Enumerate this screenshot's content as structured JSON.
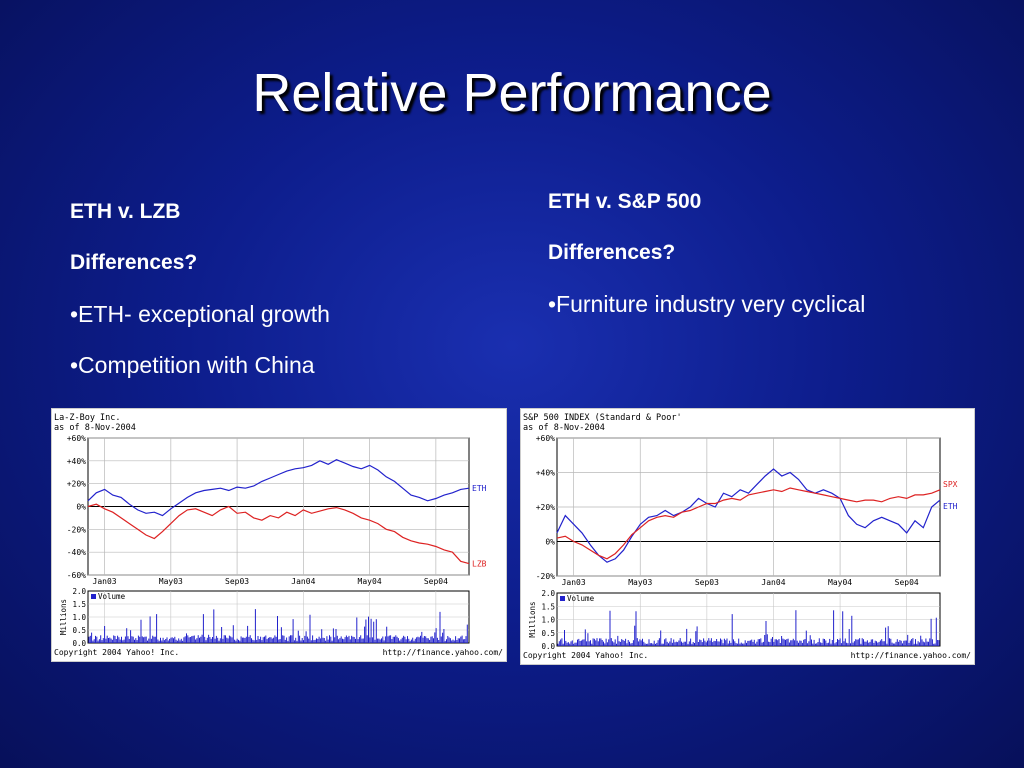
{
  "slide": {
    "title": "Relative Performance"
  },
  "left_text": {
    "heading": "ETH v. LZB",
    "question": "Differences?",
    "bullets": [
      "•ETH- exceptional growth",
      "•Competition with China"
    ]
  },
  "right_text": {
    "heading": "ETH v. S&P 500",
    "question": "Differences?",
    "bullets": [
      "•Furniture industry very cyclical"
    ]
  },
  "chart_data": [
    {
      "type": "line",
      "header": [
        "La-Z-Boy Inc.",
        "as of  8-Nov-2004"
      ],
      "ylim": [
        -60,
        60
      ],
      "yticks": [
        60,
        40,
        20,
        0,
        -20,
        -40,
        -60
      ],
      "ytick_labels": [
        "+60%",
        "+40%",
        "+20%",
        "0%",
        "-20%",
        "-40%",
        "-60%"
      ],
      "xlim": [
        0,
        23
      ],
      "xticks": [
        1,
        5,
        9,
        13,
        17,
        21
      ],
      "xtick_labels": [
        "Jan03",
        "May03",
        "Sep03",
        "Jan04",
        "May04",
        "Sep04"
      ],
      "series": [
        {
          "name": "ETH",
          "color": "#2222cc",
          "x": [
            0,
            0.5,
            1,
            1.5,
            2,
            2.5,
            3,
            3.5,
            4,
            4.5,
            5,
            5.5,
            6,
            6.5,
            7,
            7.5,
            8,
            8.5,
            9,
            9.5,
            10,
            10.5,
            11,
            11.5,
            12,
            12.5,
            13,
            13.5,
            14,
            14.5,
            15,
            15.5,
            16,
            16.5,
            17,
            17.5,
            18,
            18.5,
            19,
            19.5,
            20,
            20.5,
            21,
            21.5,
            22,
            22.5,
            23
          ],
          "y": [
            5,
            12,
            15,
            10,
            8,
            2,
            -3,
            -6,
            -5,
            -8,
            -2,
            3,
            8,
            12,
            14,
            15,
            16,
            14,
            17,
            16,
            18,
            22,
            25,
            28,
            31,
            33,
            34,
            36,
            40,
            37,
            41,
            38,
            35,
            33,
            36,
            32,
            26,
            22,
            16,
            10,
            8,
            5,
            7,
            10,
            12,
            15,
            16
          ]
        },
        {
          "name": "LZB",
          "color": "#dd2222",
          "x": [
            0,
            0.5,
            1,
            1.5,
            2,
            2.5,
            3,
            3.5,
            4,
            4.5,
            5,
            5.5,
            6,
            6.5,
            7,
            7.5,
            8,
            8.5,
            9,
            9.5,
            10,
            10.5,
            11,
            11.5,
            12,
            12.5,
            13,
            13.5,
            14,
            14.5,
            15,
            15.5,
            16,
            16.5,
            17,
            17.5,
            18,
            18.5,
            19,
            19.5,
            20,
            20.5,
            21,
            21.5,
            22,
            22.5,
            23
          ],
          "y": [
            0,
            2,
            -2,
            -5,
            -10,
            -15,
            -20,
            -25,
            -28,
            -22,
            -15,
            -8,
            -3,
            -2,
            -5,
            -8,
            -3,
            0,
            -6,
            -5,
            -10,
            -12,
            -8,
            -10,
            -5,
            -8,
            -3,
            -6,
            -4,
            -2,
            -1,
            -3,
            -6,
            -10,
            -12,
            -15,
            -20,
            -22,
            -27,
            -30,
            -32,
            -33,
            -35,
            -38,
            -40,
            -48,
            -50
          ]
        }
      ],
      "volume": {
        "label": "Volume",
        "ylim": [
          0,
          2.0
        ],
        "ytick_labels": [
          "2.0",
          "1.5",
          "1.0",
          "0.5",
          "0.0"
        ],
        "ylabel": "Millions"
      },
      "footer_left": "Copyright 2004 Yahoo! Inc.",
      "footer_right": "http://finance.yahoo.com/"
    },
    {
      "type": "line",
      "header": [
        "S&P 500 INDEX (Standard & Poor'",
        "as of  8-Nov-2004"
      ],
      "ylim": [
        -20,
        60
      ],
      "yticks": [
        60,
        40,
        20,
        0,
        -20
      ],
      "ytick_labels": [
        "+60%",
        "+40%",
        "+20%",
        "0%",
        "-20%"
      ],
      "xlim": [
        0,
        23
      ],
      "xticks": [
        1,
        5,
        9,
        13,
        17,
        21
      ],
      "xtick_labels": [
        "Jan03",
        "May03",
        "Sep03",
        "Jan04",
        "May04",
        "Sep04"
      ],
      "series": [
        {
          "name": "ETH",
          "color": "#2222cc",
          "x": [
            0,
            0.5,
            1,
            1.5,
            2,
            2.5,
            3,
            3.5,
            4,
            4.5,
            5,
            5.5,
            6,
            6.5,
            7,
            7.5,
            8,
            8.5,
            9,
            9.5,
            10,
            10.5,
            11,
            11.5,
            12,
            12.5,
            13,
            13.5,
            14,
            14.5,
            15,
            15.5,
            16,
            16.5,
            17,
            17.5,
            18,
            18.5,
            19,
            19.5,
            20,
            20.5,
            21,
            21.5,
            22,
            22.5,
            23
          ],
          "y": [
            5,
            15,
            10,
            5,
            -2,
            -8,
            -12,
            -10,
            -5,
            3,
            10,
            14,
            15,
            18,
            15,
            17,
            20,
            25,
            22,
            20,
            28,
            26,
            30,
            28,
            33,
            38,
            42,
            38,
            40,
            36,
            30,
            28,
            30,
            28,
            25,
            15,
            10,
            8,
            12,
            14,
            12,
            10,
            5,
            12,
            8,
            20,
            24
          ]
        },
        {
          "name": "SPX",
          "color": "#dd2222",
          "x": [
            0,
            0.5,
            1,
            1.5,
            2,
            2.5,
            3,
            3.5,
            4,
            4.5,
            5,
            5.5,
            6,
            6.5,
            7,
            7.5,
            8,
            8.5,
            9,
            9.5,
            10,
            10.5,
            11,
            11.5,
            12,
            12.5,
            13,
            13.5,
            14,
            14.5,
            15,
            15.5,
            16,
            16.5,
            17,
            17.5,
            18,
            18.5,
            19,
            19.5,
            20,
            20.5,
            21,
            21.5,
            22,
            22.5,
            23
          ],
          "y": [
            2,
            3,
            0,
            -2,
            -5,
            -8,
            -10,
            -7,
            -2,
            4,
            8,
            12,
            14,
            15,
            14,
            17,
            18,
            20,
            22,
            22,
            24,
            25,
            24,
            27,
            28,
            29,
            30,
            29,
            31,
            30,
            29,
            28,
            27,
            26,
            25,
            24,
            23,
            24,
            24,
            23,
            25,
            26,
            25,
            27,
            27,
            28,
            30
          ]
        }
      ],
      "volume": {
        "label": "Volume",
        "ylim": [
          0,
          2.0
        ],
        "ytick_labels": [
          "2.0",
          "1.5",
          "1.0",
          "0.5",
          "0.0"
        ],
        "ylabel": "Millions"
      },
      "footer_left": "Copyright 2004 Yahoo! Inc.",
      "footer_right": "http://finance.yahoo.com/"
    }
  ]
}
